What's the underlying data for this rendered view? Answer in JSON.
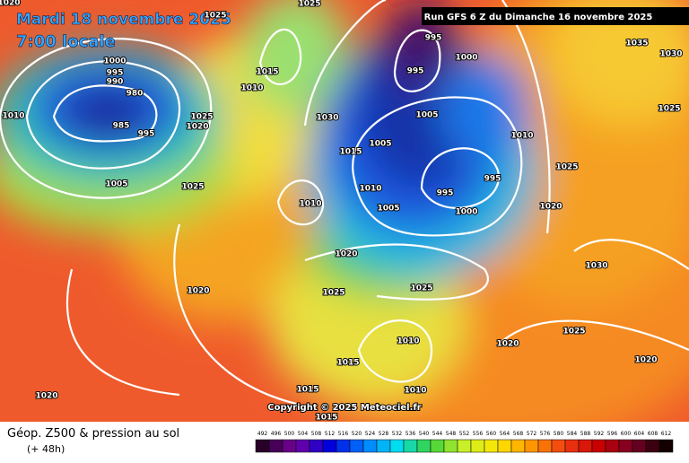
{
  "header": {
    "date": "Mardi 18 novembre 2025",
    "time": "7:00 locale",
    "run": "Run GFS 6 Z du Dimanche 16 novembre 2025"
  },
  "footer": {
    "title": "Géop. Z500 & pression au sol",
    "lead": "(+ 48h)"
  },
  "copyright": "Copyright © 2025 Meteociel.fr",
  "legend": {
    "values": [
      492,
      496,
      500,
      504,
      508,
      512,
      516,
      520,
      524,
      528,
      532,
      536,
      540,
      544,
      548,
      552,
      556,
      560,
      564,
      568,
      572,
      576,
      580,
      584,
      588,
      592,
      596,
      600,
      604,
      608,
      612
    ]
  },
  "isobars": [
    "1020",
    "1025",
    "1025",
    "1000",
    "995",
    "990",
    "980",
    "985",
    "995",
    "1010",
    "1005",
    "1025",
    "1015",
    "1010",
    "1025",
    "1020",
    "995",
    "995",
    "1000",
    "1030",
    "1005",
    "1005",
    "1015",
    "1010",
    "1005",
    "995",
    "995",
    "1000",
    "1010",
    "1025",
    "1020",
    "1035",
    "1030",
    "1025",
    "1010",
    "1020",
    "1025",
    "1025",
    "1030",
    "1020",
    "1020",
    "1025",
    "1010",
    "1015",
    "1020",
    "1015",
    "1010",
    "1020",
    "1015"
  ]
}
